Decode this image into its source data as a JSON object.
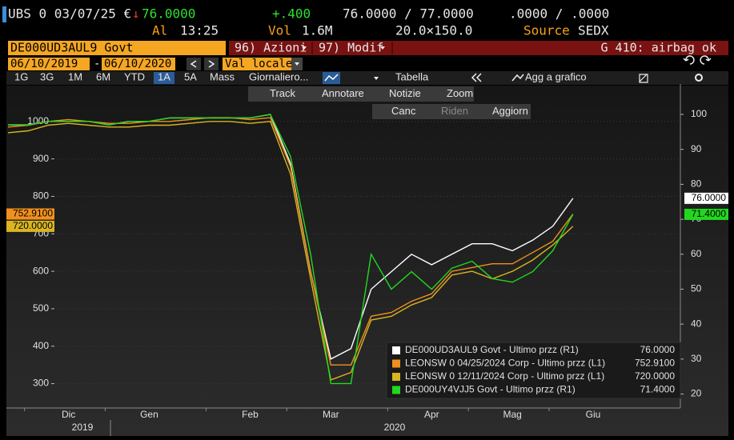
{
  "quote": {
    "security": "UBS 0 03/07/25 €",
    "arrow": "↓",
    "last": "76.0000",
    "change": "+.400",
    "bid_ask": "76.0000 / 77.0000",
    "sizes": ".0000 / .0000",
    "time_label": "Al",
    "time": "13:25",
    "vol_label": "Vol",
    "vol": "1.6M",
    "size": "20.0×150.0",
    "source_label": "Source",
    "source": "SEDX"
  },
  "toolbar": {
    "security_field": "DE000UD3AUL9 Govt",
    "menu1": "96) Azioni",
    "menu2": "97) Modif",
    "status": "G 410: airbag ok",
    "date_from": "06/10/2019",
    "date_sep": "-",
    "date_to": "06/10/2020",
    "currency": "Val locale",
    "periods": [
      "1G",
      "3G",
      "1M",
      "6M",
      "YTD",
      "1A",
      "5A",
      "Mass"
    ],
    "frequency": "Giornaliero...",
    "table": "Tabella",
    "add": "Agg a grafico",
    "tools": [
      "Track",
      "Annotare",
      "Notizie",
      "Zoom"
    ],
    "actions": [
      "Canc",
      "Riden",
      "Aggiorn"
    ]
  },
  "chart_data": {
    "type": "line",
    "categories": [
      null,
      null,
      null,
      "Dic",
      null,
      null,
      null,
      "Gen",
      null,
      null,
      null,
      null,
      "Feb",
      null,
      null,
      null,
      "Mar",
      null,
      null,
      null,
      null,
      "Apr",
      null,
      null,
      null,
      "Mag",
      null,
      null,
      null,
      "Giu"
    ],
    "year_labels": [
      "2019",
      "2020"
    ],
    "ylim": [
      235,
      1100
    ],
    "yticks": [
      300,
      400,
      500,
      600,
      700,
      800,
      900,
      1000
    ],
    "y2lim": [
      16,
      108.7
    ],
    "y2ticks": [
      20,
      30,
      40,
      50,
      60,
      70,
      80,
      90,
      100
    ],
    "grid": true,
    "series": [
      {
        "name": "DE000UD3AUL9 Govt - Ultimo przz (R1)",
        "color": "#ffffff",
        "axis": "y2",
        "last_label": "76.0000",
        "values": [
          97,
          97,
          98,
          98,
          98,
          97,
          98,
          98,
          99,
          99,
          99,
          99,
          99,
          100,
          86,
          55,
          30,
          33,
          50,
          55,
          60,
          57,
          60,
          63,
          63,
          61,
          64,
          68,
          76,
          null
        ]
      },
      {
        "name": "LEONSW 0 04/25/2024 Corp - Ultimo przz (L1)",
        "color": "#f0901e",
        "last_label": "752.9100",
        "values": [
          985,
          990,
          1000,
          1005,
          1000,
          995,
          995,
          1000,
          1000,
          1005,
          1010,
          1010,
          1005,
          1010,
          880,
          600,
          350,
          350,
          480,
          490,
          520,
          540,
          600,
          610,
          620,
          620,
          650,
          680,
          752.91,
          null
        ]
      },
      {
        "name": "LEONSW 0 12/11/2024 Corp - Ultimo przz (L1)",
        "color": "#d9b520",
        "last_label": "720.0000",
        "values": [
          970,
          975,
          990,
          995,
          990,
          985,
          985,
          990,
          990,
          995,
          1000,
          1000,
          995,
          1000,
          860,
          580,
          310,
          330,
          470,
          480,
          510,
          530,
          590,
          600,
          580,
          600,
          630,
          670,
          720,
          null
        ]
      },
      {
        "name": "DE000UY4VJJ5 Govt - Ultimo przz (R1)",
        "color": "#22d81e",
        "axis": "y2",
        "last_label": "71.4000",
        "values": [
          97,
          97,
          98,
          98,
          98,
          97,
          98,
          98,
          99,
          99,
          99,
          99,
          99,
          100,
          88,
          60,
          23,
          23,
          60,
          50,
          55,
          50,
          56,
          58,
          53,
          52,
          55,
          61,
          71.4,
          null
        ]
      }
    ]
  }
}
